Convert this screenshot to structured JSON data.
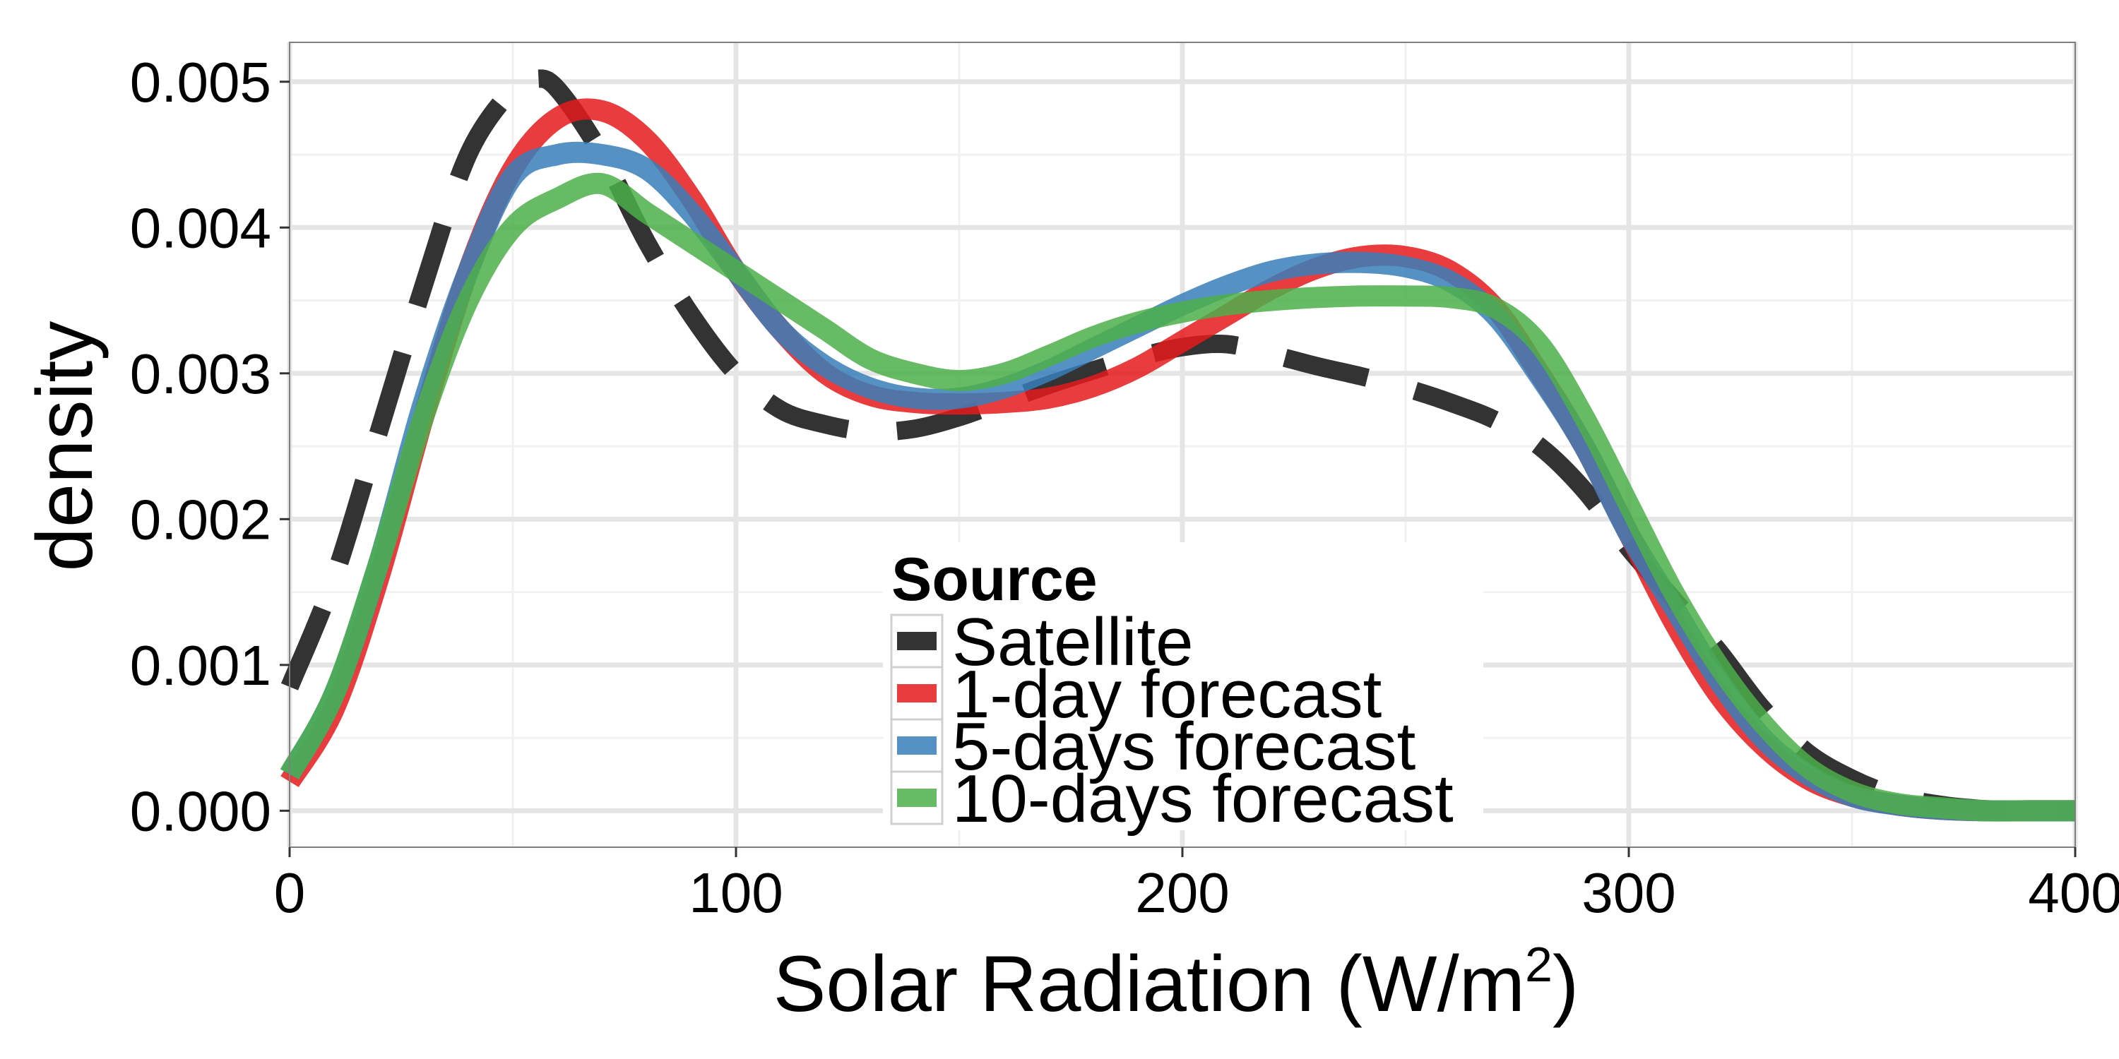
{
  "chart_data": {
    "type": "line",
    "title": "",
    "xlabel": "Solar Radiation (W/m",
    "xlabel_sup": "2",
    "xlabel_close": ")",
    "ylabel": "density",
    "xlim": [
      0,
      400
    ],
    "ylim": [
      -0.00025,
      0.00527
    ],
    "x_ticks": [
      0,
      100,
      200,
      300,
      400
    ],
    "x_tick_labels": [
      "0",
      "100",
      "200",
      "300",
      "400"
    ],
    "y_ticks": [
      0,
      0.001,
      0.002,
      0.003,
      0.004,
      0.005
    ],
    "y_tick_labels": [
      "0.000",
      "0.001",
      "0.002",
      "0.003",
      "0.004",
      "0.005"
    ],
    "grid": true,
    "legend": {
      "title": "Source",
      "position": "center-bottom"
    },
    "series": [
      {
        "name": "Satellite",
        "color": "#333333",
        "dash": true,
        "x": [
          0,
          10,
          20,
          30,
          40,
          50,
          55,
          60,
          70,
          80,
          90,
          100,
          110,
          120,
          130,
          140,
          150,
          160,
          170,
          180,
          190,
          200,
          210,
          220,
          230,
          240,
          250,
          260,
          270,
          280,
          290,
          300,
          310,
          320,
          330,
          340,
          350,
          360,
          370,
          380,
          390,
          400
        ],
        "y": [
          0.00085,
          0.0016,
          0.0026,
          0.0036,
          0.0045,
          0.00495,
          0.00502,
          0.00495,
          0.0045,
          0.0039,
          0.0034,
          0.003,
          0.00275,
          0.00265,
          0.0026,
          0.00262,
          0.0027,
          0.00281,
          0.00292,
          0.00302,
          0.00311,
          0.00318,
          0.0032,
          0.00313,
          0.00305,
          0.00298,
          0.0029,
          0.0028,
          0.00268,
          0.0025,
          0.0022,
          0.0018,
          0.00145,
          0.0011,
          0.0007,
          0.0004,
          0.00022,
          0.0001,
          4e-05,
          1e-05,
          0.0,
          0.0
        ]
      },
      {
        "name": "1-day forecast",
        "color": "#e41a1c",
        "dash": false,
        "x": [
          0,
          10,
          20,
          30,
          40,
          50,
          60,
          70,
          80,
          90,
          100,
          110,
          120,
          130,
          140,
          150,
          160,
          170,
          180,
          190,
          200,
          210,
          220,
          230,
          240,
          250,
          260,
          270,
          280,
          290,
          300,
          310,
          320,
          330,
          340,
          350,
          360,
          370,
          380,
          390,
          400
        ],
        "y": [
          0.0002,
          0.0007,
          0.0016,
          0.0027,
          0.0037,
          0.0044,
          0.00475,
          0.0048,
          0.0046,
          0.0042,
          0.0037,
          0.0033,
          0.003,
          0.00285,
          0.0028,
          0.00279,
          0.0028,
          0.00283,
          0.00291,
          0.00304,
          0.00322,
          0.0034,
          0.00358,
          0.00372,
          0.0038,
          0.0038,
          0.0037,
          0.00345,
          0.003,
          0.0025,
          0.0019,
          0.0013,
          0.0008,
          0.00045,
          0.00022,
          0.0001,
          4e-05,
          1e-05,
          0.0,
          0.0,
          0.0
        ]
      },
      {
        "name": "5-days forecast",
        "color": "#377eb8",
        "dash": false,
        "x": [
          0,
          10,
          20,
          30,
          40,
          50,
          60,
          70,
          80,
          90,
          100,
          110,
          120,
          130,
          140,
          150,
          160,
          170,
          180,
          190,
          200,
          210,
          220,
          230,
          240,
          250,
          260,
          270,
          280,
          290,
          300,
          310,
          320,
          330,
          340,
          350,
          360,
          370,
          380,
          390,
          400
        ],
        "y": [
          0.00025,
          0.0008,
          0.0017,
          0.0028,
          0.0037,
          0.00435,
          0.0045,
          0.0045,
          0.0044,
          0.0041,
          0.0037,
          0.0033,
          0.00305,
          0.0029,
          0.00283,
          0.00283,
          0.0029,
          0.00302,
          0.00317,
          0.00332,
          0.00347,
          0.0036,
          0.0037,
          0.00375,
          0.00376,
          0.00373,
          0.00363,
          0.0034,
          0.00298,
          0.0025,
          0.0019,
          0.0014,
          0.0009,
          0.0005,
          0.00025,
          0.0001,
          4e-05,
          1e-05,
          0.0,
          0.0,
          0.0
        ]
      },
      {
        "name": "10-days forecast",
        "color": "#4daf4a",
        "dash": false,
        "x": [
          0,
          10,
          20,
          30,
          40,
          50,
          60,
          70,
          80,
          90,
          100,
          110,
          120,
          130,
          140,
          150,
          160,
          170,
          180,
          190,
          200,
          210,
          220,
          230,
          240,
          250,
          260,
          270,
          280,
          290,
          300,
          310,
          320,
          330,
          340,
          350,
          360,
          370,
          380,
          390,
          400
        ],
        "y": [
          0.00025,
          0.0008,
          0.0017,
          0.0027,
          0.0035,
          0.004,
          0.0042,
          0.0043,
          0.0041,
          0.0039,
          0.0037,
          0.0035,
          0.0033,
          0.0031,
          0.003,
          0.00295,
          0.003,
          0.00312,
          0.00325,
          0.00335,
          0.00342,
          0.00347,
          0.0035,
          0.00352,
          0.00353,
          0.00353,
          0.00352,
          0.00345,
          0.0032,
          0.0027,
          0.0021,
          0.0015,
          0.001,
          0.0006,
          0.0003,
          0.00013,
          5e-05,
          2e-05,
          0.0,
          0.0,
          0.0
        ]
      }
    ]
  }
}
